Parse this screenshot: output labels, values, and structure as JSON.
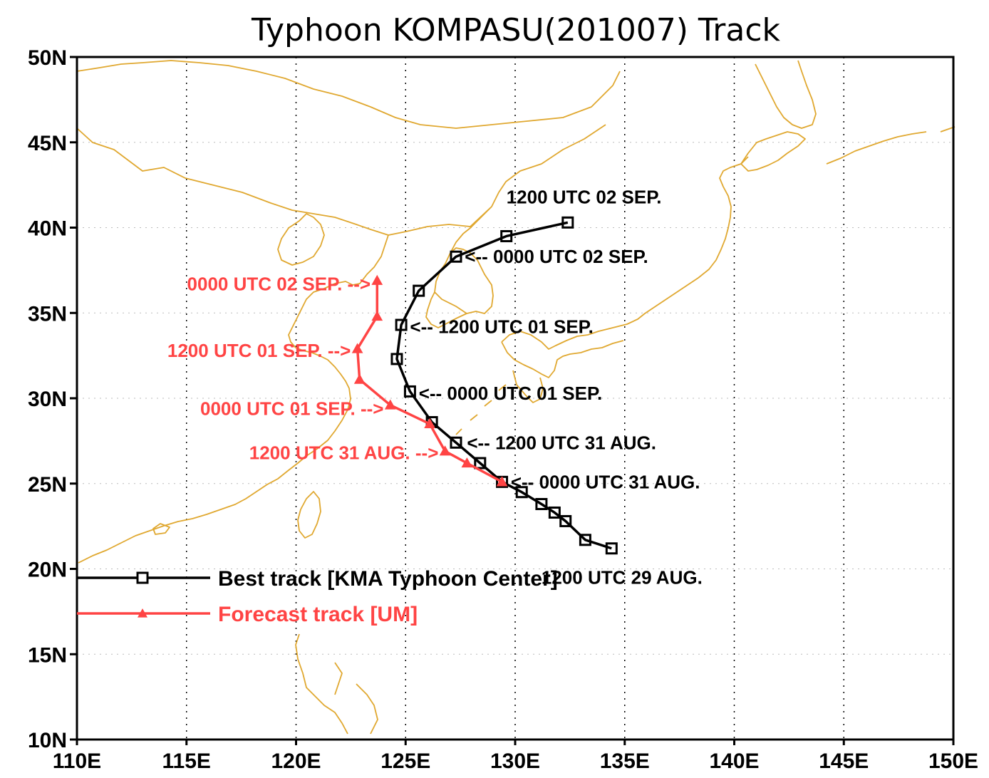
{
  "title": "Typhoon KOMPASU(201007) Track",
  "colors": {
    "coast": "#e0a830",
    "best_track": "#000000",
    "forecast_track": "#ff4444",
    "grid": "#000000"
  },
  "chart_data": {
    "type": "line",
    "projection": "lat-lon",
    "xlim": [
      110,
      150
    ],
    "ylim": [
      10,
      50
    ],
    "x_ticks": [
      {
        "value": 110,
        "label": "110E"
      },
      {
        "value": 115,
        "label": "115E"
      },
      {
        "value": 120,
        "label": "120E"
      },
      {
        "value": 125,
        "label": "125E"
      },
      {
        "value": 130,
        "label": "130E"
      },
      {
        "value": 135,
        "label": "135E"
      },
      {
        "value": 140,
        "label": "140E"
      },
      {
        "value": 145,
        "label": "145E"
      },
      {
        "value": 150,
        "label": "150E"
      }
    ],
    "y_ticks": [
      {
        "value": 10,
        "label": "10N"
      },
      {
        "value": 15,
        "label": "15N"
      },
      {
        "value": 20,
        "label": "20N"
      },
      {
        "value": 25,
        "label": "25N"
      },
      {
        "value": 30,
        "label": "30N"
      },
      {
        "value": 35,
        "label": "35N"
      },
      {
        "value": 40,
        "label": "40N"
      },
      {
        "value": 45,
        "label": "45N"
      },
      {
        "value": 50,
        "label": "50N"
      }
    ],
    "grid": true,
    "legend_position": "bottom-left",
    "series": [
      {
        "name": "Best track [KMA Typhoon Center]",
        "color": "#000000",
        "marker": "square",
        "points": [
          {
            "lon": 134.4,
            "lat": 21.2
          },
          {
            "lon": 133.2,
            "lat": 21.7
          },
          {
            "lon": 132.3,
            "lat": 22.8
          },
          {
            "lon": 131.8,
            "lat": 23.3
          },
          {
            "lon": 131.2,
            "lat": 23.8
          },
          {
            "lon": 130.3,
            "lat": 24.5
          },
          {
            "lon": 129.4,
            "lat": 25.1
          },
          {
            "lon": 128.4,
            "lat": 26.2
          },
          {
            "lon": 127.3,
            "lat": 27.4
          },
          {
            "lon": 126.2,
            "lat": 28.6
          },
          {
            "lon": 125.2,
            "lat": 30.4
          },
          {
            "lon": 124.6,
            "lat": 32.3
          },
          {
            "lon": 124.8,
            "lat": 34.3
          },
          {
            "lon": 125.6,
            "lat": 36.3
          },
          {
            "lon": 127.3,
            "lat": 38.3
          },
          {
            "lon": 129.6,
            "lat": 39.5
          },
          {
            "lon": 132.4,
            "lat": 40.3
          }
        ]
      },
      {
        "name": "Forecast track [UM]",
        "color": "#ff4444",
        "marker": "triangle",
        "points": [
          {
            "lon": 129.4,
            "lat": 25.1
          },
          {
            "lon": 127.8,
            "lat": 26.2
          },
          {
            "lon": 126.8,
            "lat": 26.9
          },
          {
            "lon": 126.1,
            "lat": 28.5
          },
          {
            "lon": 124.3,
            "lat": 29.6
          },
          {
            "lon": 122.9,
            "lat": 31.1
          },
          {
            "lon": 122.8,
            "lat": 32.9
          },
          {
            "lon": 123.7,
            "lat": 34.8
          },
          {
            "lon": 123.7,
            "lat": 36.9
          }
        ]
      }
    ],
    "annotations": [
      {
        "text": "1200 UTC 02 SEP.",
        "color": "#000000",
        "anchor_lon": 129.6,
        "anchor_lat": 41.8,
        "align": "start",
        "arrow": false
      },
      {
        "text": "<-- 0000 UTC 02 SEP.",
        "color": "#000000",
        "anchor_lon": 127.7,
        "anchor_lat": 38.3,
        "align": "start",
        "arrow": true
      },
      {
        "text": "<-- 1200 UTC 01 SEP.",
        "color": "#000000",
        "anchor_lon": 125.2,
        "anchor_lat": 34.2,
        "align": "start",
        "arrow": true
      },
      {
        "text": "<-- 0000 UTC 01 SEP.",
        "color": "#000000",
        "anchor_lon": 125.6,
        "anchor_lat": 30.3,
        "align": "start",
        "arrow": true
      },
      {
        "text": "<-- 1200 UTC 31 AUG.",
        "color": "#000000",
        "anchor_lon": 127.8,
        "anchor_lat": 27.4,
        "align": "start",
        "arrow": true
      },
      {
        "text": "<-- 0000 UTC 31 AUG.",
        "color": "#000000",
        "anchor_lon": 129.8,
        "anchor_lat": 25.1,
        "align": "start",
        "arrow": true
      },
      {
        "text": "1200 UTC 29 AUG.",
        "color": "#000000",
        "anchor_lon": 131.2,
        "anchor_lat": 19.5,
        "align": "start",
        "arrow": false
      },
      {
        "text": "0000 UTC 02 SEP. -->",
        "color": "#ff4444",
        "anchor_lon": 123.4,
        "anchor_lat": 36.7,
        "align": "end",
        "arrow": true
      },
      {
        "text": "1200 UTC 01 SEP. -->",
        "color": "#ff4444",
        "anchor_lon": 122.5,
        "anchor_lat": 32.8,
        "align": "end",
        "arrow": true
      },
      {
        "text": "0000 UTC 01 SEP. -->",
        "color": "#ff4444",
        "anchor_lon": 124.0,
        "anchor_lat": 29.4,
        "align": "end",
        "arrow": true
      },
      {
        "text": "1200 UTC 31 AUG. -->",
        "color": "#ff4444",
        "anchor_lon": 126.5,
        "anchor_lat": 26.8,
        "align": "end",
        "arrow": true
      }
    ]
  }
}
